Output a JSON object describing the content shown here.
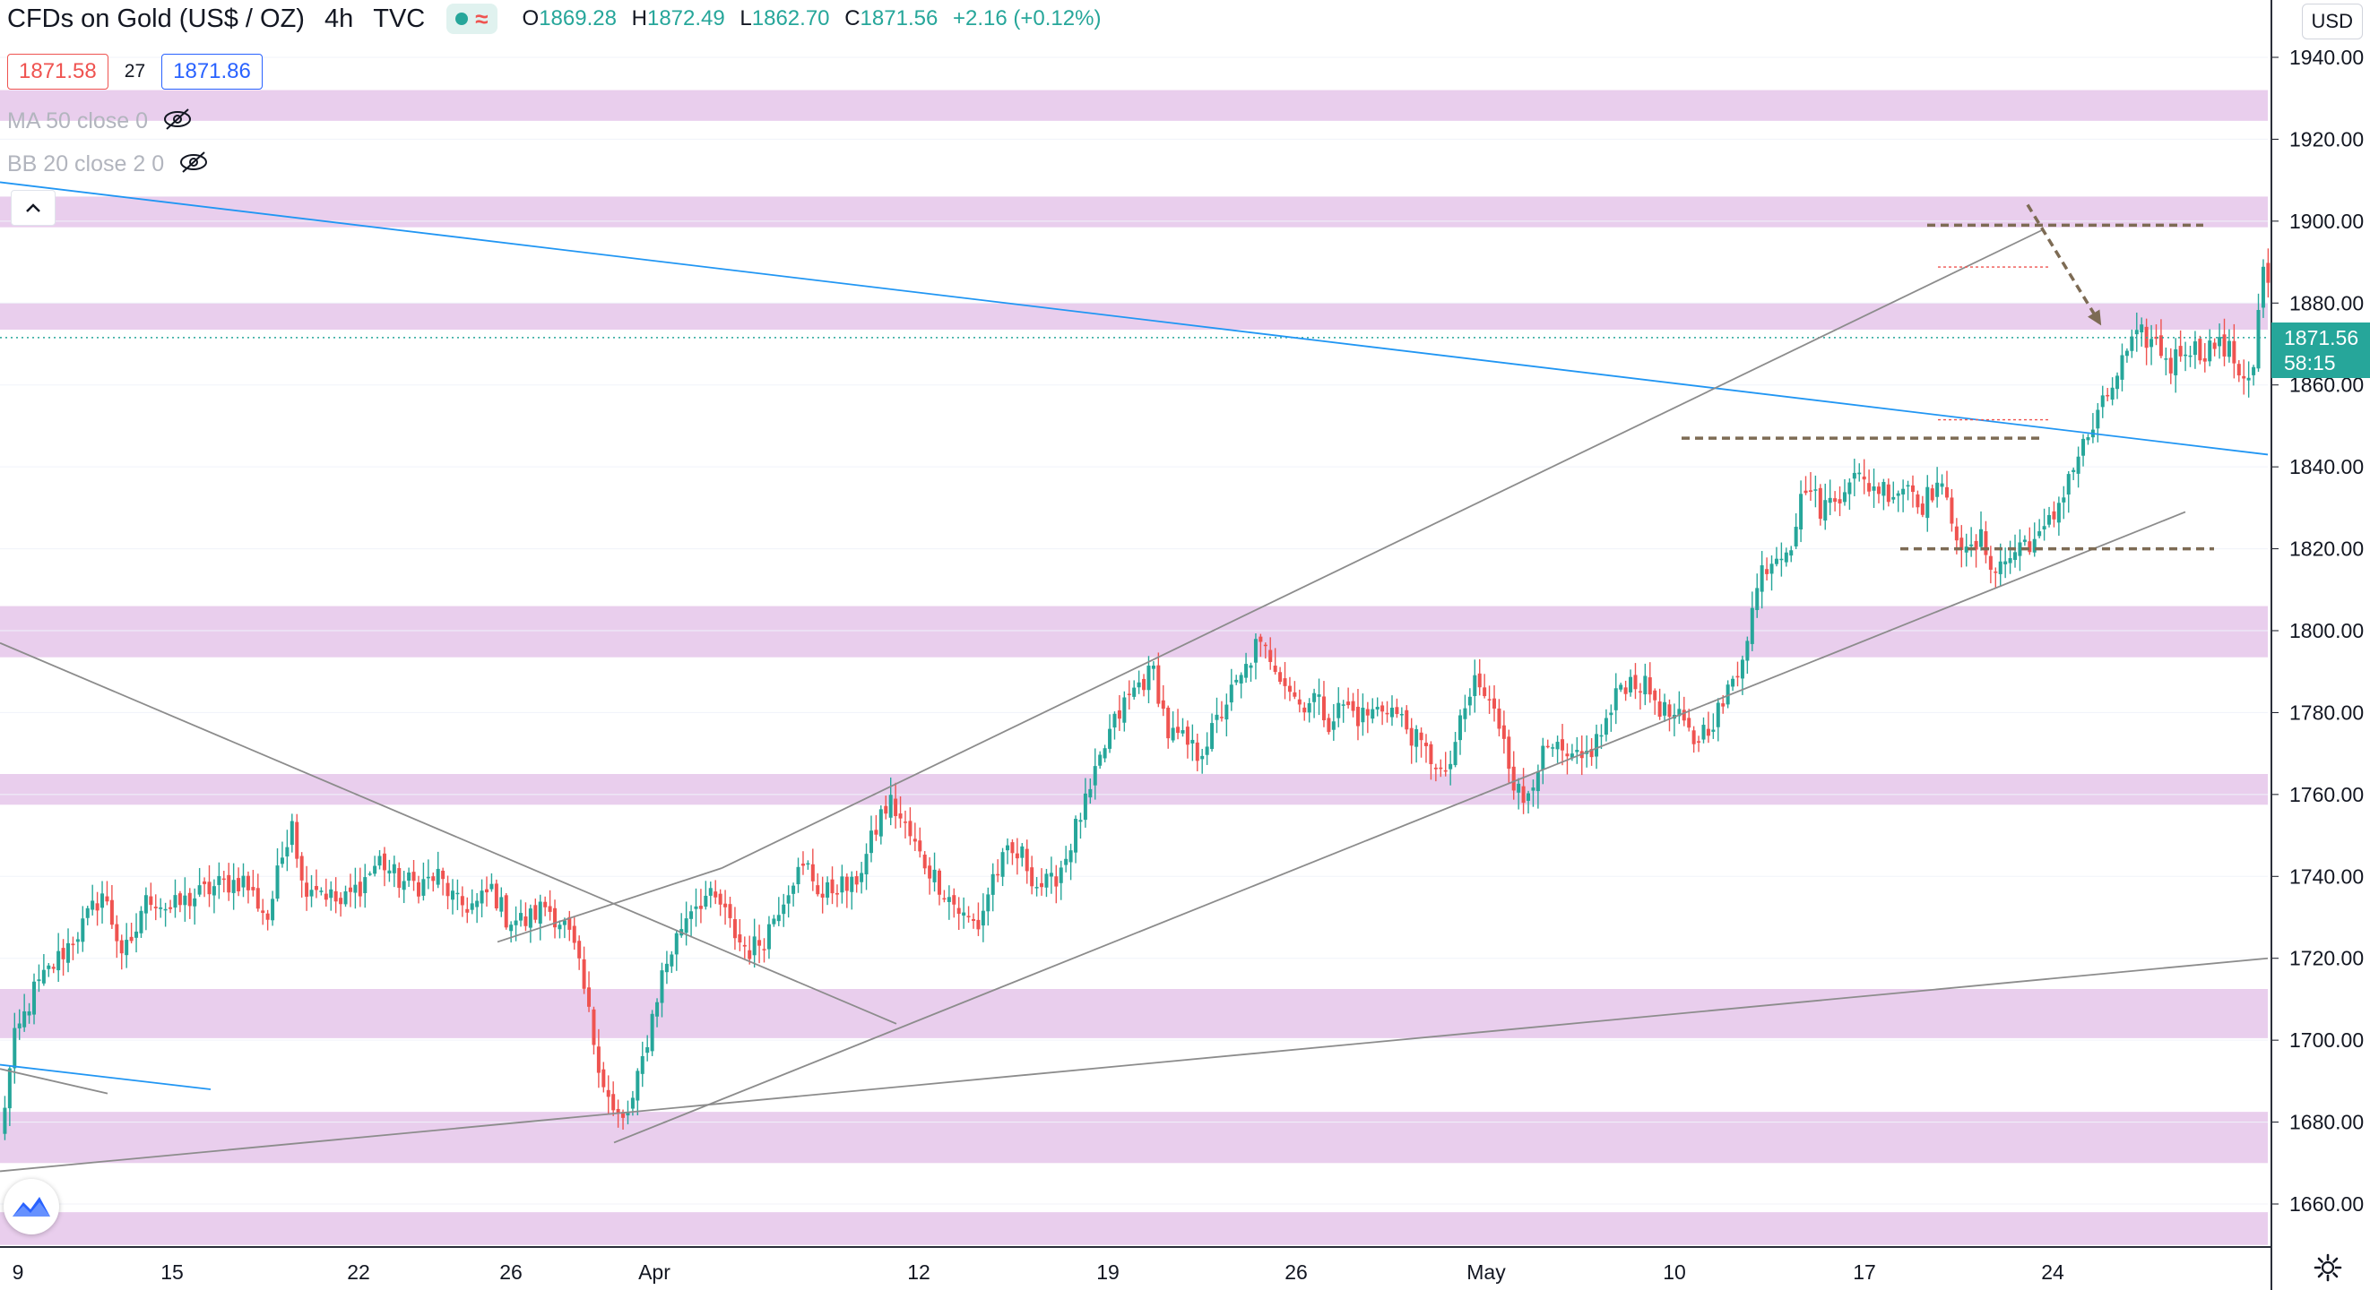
{
  "legend": {
    "symbol": "CFDs on Gold (US$ / OZ)",
    "interval": "4h",
    "source": "TVC",
    "ohlc": {
      "o_label": "O",
      "o": "1869.28",
      "h_label": "H",
      "h": "1872.49",
      "l_label": "L",
      "l": "1862.70",
      "c_label": "C",
      "c": "1871.56",
      "change": "+2.16 (+0.12%)"
    },
    "sell_price": "1871.58",
    "spread": "27",
    "buy_price": "1871.86",
    "indicators": [
      "MA 50 close 0",
      "BB 20 close 2 0"
    ]
  },
  "currency_button": "USD",
  "last_price": {
    "value": "1871.56",
    "countdown": "58:15"
  },
  "colors": {
    "up": "#26a69a",
    "down": "#ef5350",
    "zone": "#e1bee7",
    "trend_blue": "#2196f3",
    "channel_gray": "#8c8c8c",
    "projection_brown": "#7d6b54"
  },
  "chart_data": {
    "type": "candlestick",
    "title": "CFDs on Gold (US$ / OZ) 4h TVC",
    "y_axis": {
      "ticks": [
        "1660.00",
        "1680.00",
        "1700.00",
        "1720.00",
        "1740.00",
        "1760.00",
        "1780.00",
        "1800.00",
        "1820.00",
        "1840.00",
        "1860.00",
        "1880.00",
        "1900.00",
        "1920.00",
        "1940.00"
      ],
      "range": [
        1650,
        1953
      ]
    },
    "x_axis": {
      "labels": [
        "9",
        "15",
        "22",
        "26",
        "Apr",
        "12",
        "19",
        "26",
        "May",
        "10",
        "17",
        "24"
      ]
    },
    "visible_candles": 245,
    "candle_path": [
      [
        0,
        1677
      ],
      [
        3,
        1700
      ],
      [
        7,
        1712
      ],
      [
        12,
        1720
      ],
      [
        17,
        1728
      ],
      [
        21,
        1736
      ],
      [
        25,
        1722
      ],
      [
        27,
        1722
      ],
      [
        29,
        1732
      ],
      [
        31,
        1735
      ],
      [
        35,
        1732
      ],
      [
        40,
        1735
      ],
      [
        45,
        1738
      ],
      [
        50,
        1739
      ],
      [
        55,
        1730
      ],
      [
        58,
        1745
      ],
      [
        60,
        1755
      ],
      [
        62,
        1738
      ],
      [
        65,
        1738
      ],
      [
        70,
        1733
      ],
      [
        74,
        1738
      ],
      [
        78,
        1744
      ],
      [
        82,
        1739
      ],
      [
        86,
        1738
      ],
      [
        90,
        1740
      ],
      [
        94,
        1733
      ],
      [
        98,
        1733
      ],
      [
        101,
        1737
      ],
      [
        104,
        1730
      ],
      [
        108,
        1729
      ],
      [
        112,
        1733
      ],
      [
        116,
        1728
      ],
      [
        118,
        1722
      ],
      [
        120,
        1712
      ],
      [
        122,
        1700
      ],
      [
        124,
        1690
      ],
      [
        126,
        1682
      ],
      [
        128,
        1680
      ],
      [
        130,
        1685
      ],
      [
        132,
        1695
      ],
      [
        134,
        1706
      ],
      [
        136,
        1716
      ],
      [
        138,
        1722
      ],
      [
        140,
        1728
      ],
      [
        142,
        1733
      ],
      [
        145,
        1735
      ],
      [
        148,
        1733
      ],
      [
        150,
        1728
      ],
      [
        152,
        1724
      ],
      [
        154,
        1722
      ],
      [
        157,
        1725
      ],
      [
        160,
        1733
      ],
      [
        163,
        1740
      ],
      [
        166,
        1742
      ],
      [
        169,
        1735
      ],
      [
        172,
        1738
      ],
      [
        175,
        1737
      ],
      [
        178,
        1745
      ],
      [
        181,
        1755
      ],
      [
        183,
        1758
      ],
      [
        186,
        1752
      ],
      [
        189,
        1745
      ],
      [
        192,
        1740
      ],
      [
        195,
        1735
      ],
      [
        198,
        1730
      ],
      [
        201,
        1728
      ],
      [
        204,
        1740
      ],
      [
        207,
        1745
      ],
      [
        210,
        1745
      ],
      [
        213,
        1738
      ],
      [
        216,
        1738
      ],
      [
        219,
        1745
      ],
      [
        222,
        1755
      ],
      [
        224,
        1760
      ],
      [
        226,
        1768
      ],
      [
        228,
        1775
      ],
      [
        231,
        1782
      ],
      [
        234,
        1787
      ],
      [
        237,
        1790
      ],
      [
        240,
        1775
      ],
      [
        243,
        1773
      ],
      [
        246,
        1770
      ],
      [
        249,
        1775
      ],
      [
        252,
        1783
      ],
      [
        255,
        1788
      ],
      [
        258,
        1796
      ],
      [
        261,
        1794
      ],
      [
        264,
        1788
      ],
      [
        267,
        1782
      ],
      [
        270,
        1784
      ],
      [
        273,
        1778
      ],
      [
        276,
        1782
      ],
      [
        279,
        1779
      ],
      [
        282,
        1780
      ],
      [
        285,
        1782
      ],
      [
        288,
        1778
      ],
      [
        291,
        1773
      ],
      [
        293,
        1770
      ],
      [
        295,
        1768
      ],
      [
        297,
        1763
      ],
      [
        299,
        1773
      ],
      [
        301,
        1780
      ],
      [
        303,
        1788
      ],
      [
        306,
        1782
      ],
      [
        309,
        1775
      ],
      [
        311,
        1763
      ],
      [
        313,
        1758
      ],
      [
        316,
        1768
      ],
      [
        319,
        1771
      ],
      [
        322,
        1768
      ],
      [
        325,
        1768
      ],
      [
        328,
        1773
      ],
      [
        331,
        1780
      ],
      [
        333,
        1787
      ],
      [
        336,
        1788
      ],
      [
        339,
        1785
      ],
      [
        342,
        1780
      ],
      [
        345,
        1778
      ],
      [
        348,
        1773
      ],
      [
        351,
        1777
      ],
      [
        354,
        1782
      ],
      [
        357,
        1790
      ],
      [
        360,
        1805
      ],
      [
        362,
        1815
      ],
      [
        365,
        1819
      ],
      [
        368,
        1822
      ],
      [
        371,
        1836
      ],
      [
        374,
        1830
      ],
      [
        377,
        1832
      ],
      [
        380,
        1838
      ],
      [
        383,
        1836
      ],
      [
        386,
        1835
      ],
      [
        389,
        1834
      ],
      [
        392,
        1836
      ],
      [
        395,
        1831
      ],
      [
        398,
        1836
      ],
      [
        401,
        1828
      ],
      [
        404,
        1818
      ],
      [
        407,
        1822
      ],
      [
        410,
        1815
      ],
      [
        413,
        1818
      ],
      [
        416,
        1822
      ],
      [
        419,
        1822
      ],
      [
        422,
        1828
      ],
      [
        425,
        1838
      ],
      [
        428,
        1845
      ],
      [
        431,
        1852
      ],
      [
        434,
        1860
      ],
      [
        437,
        1868
      ],
      [
        440,
        1872
      ],
      [
        443,
        1870
      ],
      [
        446,
        1865
      ],
      [
        449,
        1870
      ],
      [
        452,
        1868
      ],
      [
        455,
        1870
      ],
      [
        458,
        1868
      ],
      [
        461,
        1862
      ],
      [
        463,
        1865
      ],
      [
        465,
        1889
      ],
      [
        467,
        1878
      ],
      [
        469,
        1866
      ],
      [
        471,
        1869
      ],
      [
        473,
        1871.56
      ]
    ]
  }
}
